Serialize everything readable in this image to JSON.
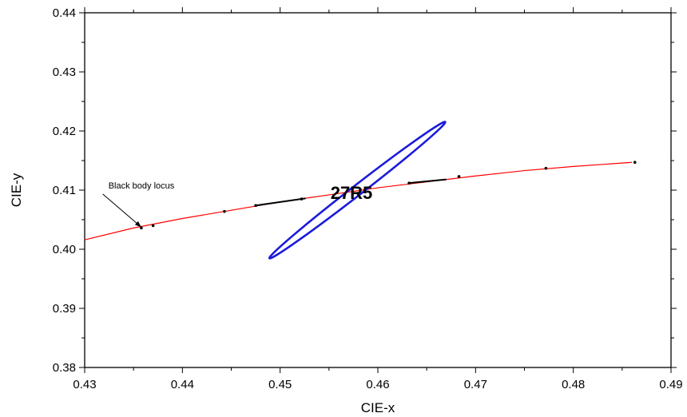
{
  "chart_data": {
    "type": "line",
    "xlabel": "CIE-x",
    "ylabel": "CIE-y",
    "xlim": [
      0.43,
      0.49
    ],
    "ylim": [
      0.38,
      0.44
    ],
    "x_ticks": [
      "0.43",
      "0.44",
      "0.45",
      "0.46",
      "0.47",
      "0.48",
      "0.49"
    ],
    "y_ticks": [
      "0.38",
      "0.39",
      "0.40",
      "0.41",
      "0.42",
      "0.43",
      "0.44"
    ],
    "grid": false,
    "colors": {
      "locus": "#ff0000",
      "ellipse": "#1a1adc",
      "isotherm": "#000000",
      "points": "#000000"
    },
    "series": [
      {
        "role": "black-body-locus",
        "x": [
          0.43,
          0.435,
          0.44,
          0.445,
          0.45,
          0.455,
          0.46,
          0.465,
          0.47,
          0.475,
          0.48,
          0.486
        ],
        "y": [
          0.4016,
          0.4036,
          0.4052,
          0.4066,
          0.408,
          0.4092,
          0.4104,
          0.4114,
          0.4124,
          0.4133,
          0.414,
          0.4147
        ]
      },
      {
        "role": "locus-markers",
        "x": [
          0.4358,
          0.437,
          0.4443,
          0.4475,
          0.4522,
          0.4632,
          0.4683,
          0.4772,
          0.4863
        ],
        "y": [
          0.4036,
          0.404,
          0.4064,
          0.4074,
          0.4085,
          0.4112,
          0.4123,
          0.4137,
          0.4147
        ]
      }
    ],
    "isotherm_segments": [
      {
        "x": [
          0.4475,
          0.4526
        ],
        "y": [
          0.4074,
          0.4086
        ]
      },
      {
        "x": [
          0.4632,
          0.467
        ],
        "y": [
          0.4112,
          0.4118
        ]
      }
    ],
    "ellipse": {
      "label": "27R5",
      "center": [
        0.4579,
        0.41
      ],
      "boundary_x": [
        0.448,
        0.466,
        0.4521,
        0.4633
      ],
      "boundary_y": [
        0.3985,
        0.4216,
        0.3985,
        0.4216
      ]
    },
    "annotations": [
      {
        "text": "Black body locus",
        "x": 0.4325,
        "y": 0.4107,
        "arrow_to": [
          0.4358,
          0.4036
        ]
      }
    ]
  }
}
